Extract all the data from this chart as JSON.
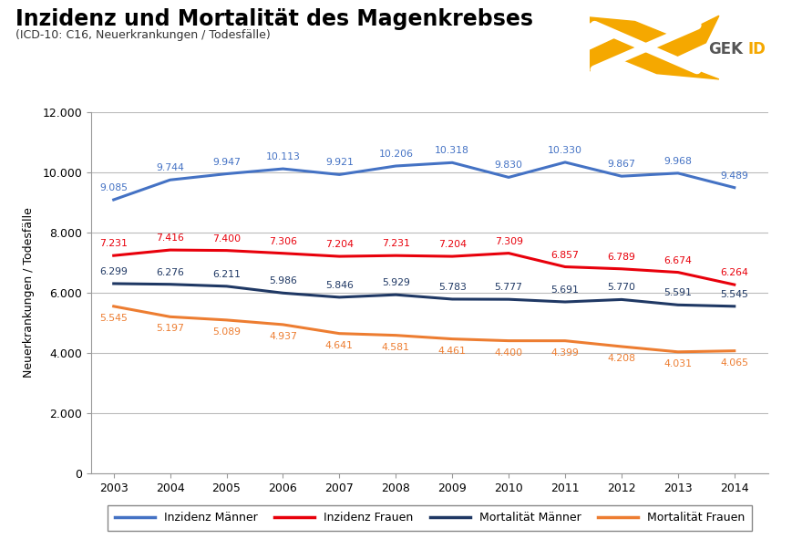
{
  "title": "Inzidenz und Mortalität des Magenkrebses",
  "subtitle": "(ICD-10: C16, Neuerkrankungen / Todesfälle)",
  "ylabel": "Neuerkrankungen / Todesfälle",
  "years": [
    2003,
    2004,
    2005,
    2006,
    2007,
    2008,
    2009,
    2010,
    2011,
    2012,
    2013,
    2014
  ],
  "inzidenz_maenner": [
    9085,
    9744,
    9947,
    10113,
    9921,
    10206,
    10318,
    9830,
    10330,
    9867,
    9968,
    9489
  ],
  "inzidenz_frauen": [
    7231,
    7416,
    7400,
    7306,
    7204,
    7231,
    7204,
    7309,
    6857,
    6789,
    6674,
    6264
  ],
  "mortalitaet_maenner": [
    6299,
    6276,
    6211,
    5986,
    5846,
    5929,
    5783,
    5777,
    5691,
    5770,
    5591,
    5545
  ],
  "mortalitaet_frauen": [
    5545,
    5197,
    5089,
    4937,
    4641,
    4581,
    4461,
    4400,
    4399,
    4208,
    4031,
    4065
  ],
  "labels": {
    "inzidenz_maenner_values": [
      "9.085",
      "9.744",
      "9.947",
      "10.113",
      "9.921",
      "10.206",
      "10.318",
      "9.830",
      "10.330",
      "9.867",
      "9.968",
      "9.489"
    ],
    "inzidenz_frauen_values": [
      "7.231",
      "7.416",
      "7.400",
      "7.306",
      "7.204",
      "7.231",
      "7.204",
      "7.309",
      "6.857",
      "6.789",
      "6.674",
      "6.264"
    ],
    "mortalitaet_maenner_values": [
      "6.299",
      "6.276",
      "6.211",
      "5.986",
      "5.846",
      "5.929",
      "5.783",
      "5.777",
      "5.691",
      "5.770",
      "5.591",
      "5.545"
    ],
    "mortalitaet_frauen_values": [
      "5.545",
      "5.197",
      "5.089",
      "4.937",
      "4.641",
      "4.581",
      "4.461",
      "4.400",
      "4.399",
      "4.208",
      "4.031",
      "4.065"
    ]
  },
  "color_inzidenz_maenner": "#4472C4",
  "color_inzidenz_frauen": "#E8000B",
  "color_mortalitaet_maenner": "#1F3864",
  "color_mortalitaet_frauen": "#ED7D31",
  "ylim_min": 0,
  "ylim_max": 12000,
  "yticks": [
    0,
    2000,
    4000,
    6000,
    8000,
    10000,
    12000
  ],
  "ytick_labels": [
    "0",
    "2.000",
    "4.000",
    "6.000",
    "8.000",
    "10.000",
    "12.000"
  ],
  "legend_labels": [
    "Inzidenz Männer",
    "Inzidenz Frauen",
    "Mortalität Männer",
    "Mortalität Frauen"
  ],
  "background_color": "#FFFFFF",
  "grid_color": "#BBBBBB",
  "linewidth": 2.2,
  "logo_orange": "#F5A800"
}
